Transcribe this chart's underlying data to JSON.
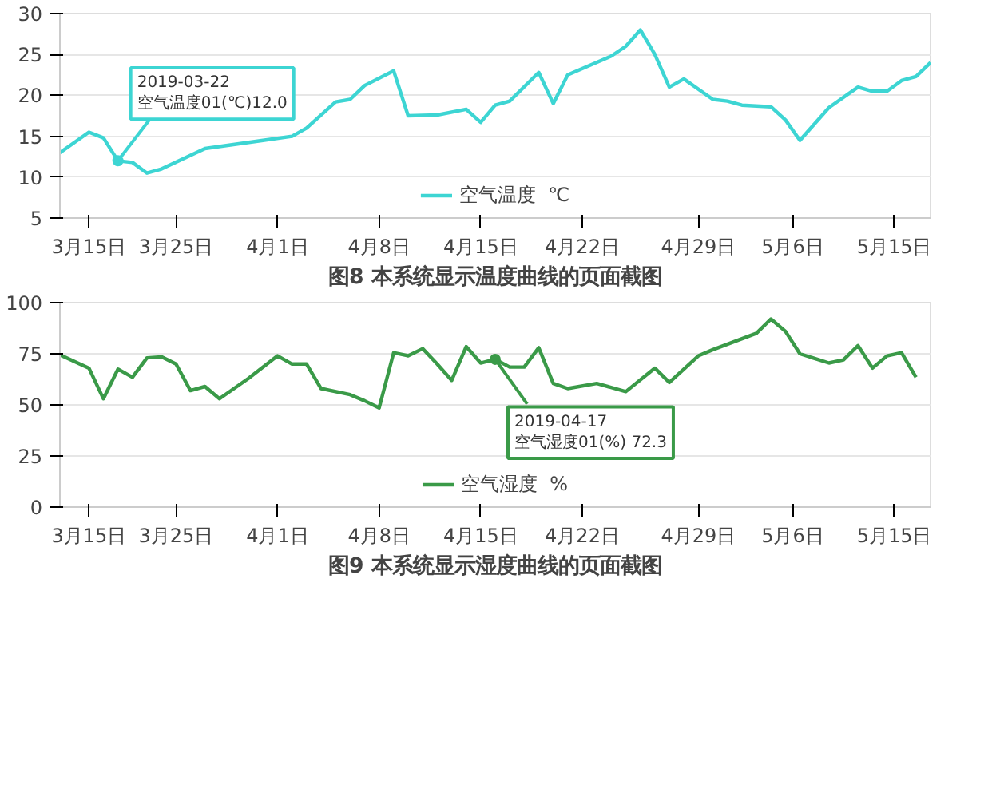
{
  "chart_data": [
    {
      "type": "line",
      "title": "图8 本系统显示温度曲线的页面截图",
      "legend": "bottom",
      "grid": "y",
      "marker": "none",
      "line_style": "solid",
      "xlim": [
        "2019-03-18",
        "2019-05-17"
      ],
      "ylim": [
        5,
        30
      ],
      "yticks": [
        5,
        10,
        15,
        20,
        25,
        30
      ],
      "xticks": [
        {
          "value": "2019-03-20",
          "label": "3月15日"
        },
        {
          "value": "2019-03-26",
          "label": "3月25日"
        },
        {
          "value": "2019-04-02",
          "label": "4月1日"
        },
        {
          "value": "2019-04-09",
          "label": "4月8日"
        },
        {
          "value": "2019-04-16",
          "label": "4月15日"
        },
        {
          "value": "2019-04-23",
          "label": "4月22日"
        },
        {
          "value": "2019-05-01",
          "label": "4月29日"
        },
        {
          "value": "2019-05-07T12:00",
          "label": "5月6日"
        },
        {
          "value": "2019-05-14T12:00",
          "label": "5月15日"
        }
      ],
      "annotations": [
        {
          "text": "2019-03-22\n空气温度01(℃)12.0",
          "x": "2019-03-22",
          "y": 12.0
        }
      ],
      "series": [
        {
          "name": "空气温度  ℃",
          "color": "#3dd5d3",
          "x": [
            "2019-03-18",
            "2019-03-20",
            "2019-03-21",
            "2019-03-22",
            "2019-03-23",
            "2019-03-24",
            "2019-03-25",
            "2019-03-28",
            "2019-04-01",
            "2019-04-03",
            "2019-04-04",
            "2019-04-06",
            "2019-04-07",
            "2019-04-08",
            "2019-04-10",
            "2019-04-11",
            "2019-04-13",
            "2019-04-15",
            "2019-04-16",
            "2019-04-17",
            "2019-04-18",
            "2019-04-20",
            "2019-04-21",
            "2019-04-22",
            "2019-04-25",
            "2019-04-26",
            "2019-04-27",
            "2019-04-28",
            "2019-04-29",
            "2019-04-30",
            "2019-05-02",
            "2019-05-03",
            "2019-05-04",
            "2019-05-06",
            "2019-05-07",
            "2019-05-08",
            "2019-05-09",
            "2019-05-10",
            "2019-05-12",
            "2019-05-13",
            "2019-05-14",
            "2019-05-15",
            "2019-05-16",
            "2019-05-17"
          ],
          "values": [
            13.0,
            15.5,
            14.8,
            12.0,
            11.8,
            10.5,
            11.0,
            13.5,
            14.5,
            15.0,
            16.0,
            19.2,
            19.5,
            21.2,
            23.0,
            17.5,
            17.6,
            18.3,
            16.7,
            18.8,
            19.3,
            22.8,
            19.0,
            22.5,
            24.8,
            26.0,
            28.0,
            25.0,
            21.0,
            22.0,
            19.5,
            19.3,
            18.8,
            18.6,
            17.0,
            14.5,
            16.5,
            18.5,
            21.0,
            20.5,
            20.5,
            21.8,
            22.3,
            24.0
          ]
        }
      ]
    },
    {
      "type": "line",
      "title": "图9 本系统显示湿度曲线的页面截图",
      "legend": "bottom",
      "grid": "y",
      "marker": "none",
      "line_style": "solid",
      "xlim": [
        "2019-03-18",
        "2019-05-17"
      ],
      "ylim": [
        0,
        100
      ],
      "yticks": [
        0,
        25,
        50,
        75,
        100
      ],
      "xticks": [
        {
          "value": "2019-03-20",
          "label": "3月15日"
        },
        {
          "value": "2019-03-26",
          "label": "3月25日"
        },
        {
          "value": "2019-04-02",
          "label": "4月1日"
        },
        {
          "value": "2019-04-09",
          "label": "4月8日"
        },
        {
          "value": "2019-04-16",
          "label": "4月15日"
        },
        {
          "value": "2019-04-23",
          "label": "4月22日"
        },
        {
          "value": "2019-05-01",
          "label": "4月29日"
        },
        {
          "value": "2019-05-07T12:00",
          "label": "5月6日"
        },
        {
          "value": "2019-05-14T12:00",
          "label": "5月15日"
        }
      ],
      "annotations": [
        {
          "text": "2019-04-17\n空气湿度01(%) 72.3",
          "x": "2019-04-17",
          "y": 72.3
        }
      ],
      "series": [
        {
          "name": "空气湿度  %",
          "color": "#3a9a48",
          "x": [
            "2019-03-18",
            "2019-03-20",
            "2019-03-21",
            "2019-03-22",
            "2019-03-23",
            "2019-03-24",
            "2019-03-25",
            "2019-03-26",
            "2019-03-27",
            "2019-03-28",
            "2019-03-29",
            "2019-03-31",
            "2019-04-02",
            "2019-04-03",
            "2019-04-04",
            "2019-04-05",
            "2019-04-07",
            "2019-04-08",
            "2019-04-09",
            "2019-04-10",
            "2019-04-11",
            "2019-04-12",
            "2019-04-13",
            "2019-04-14",
            "2019-04-15",
            "2019-04-16",
            "2019-04-17",
            "2019-04-18",
            "2019-04-19",
            "2019-04-20",
            "2019-04-21",
            "2019-04-22",
            "2019-04-24",
            "2019-04-26",
            "2019-04-28",
            "2019-04-29",
            "2019-05-01",
            "2019-05-02",
            "2019-05-05",
            "2019-05-06",
            "2019-05-07",
            "2019-05-08",
            "2019-05-10",
            "2019-05-11",
            "2019-05-12",
            "2019-05-13",
            "2019-05-14",
            "2019-05-15",
            "2019-05-16"
          ],
          "values": [
            74.5,
            68,
            53,
            67.5,
            63.5,
            73,
            73.5,
            70,
            57,
            59,
            53,
            63,
            74,
            70,
            70,
            58,
            55,
            52,
            48.5,
            75.5,
            74,
            77.5,
            70,
            62,
            78.5,
            70.5,
            72.3,
            68.5,
            68.5,
            78,
            60.5,
            58,
            60.5,
            56.5,
            68,
            61,
            74,
            77,
            85,
            92,
            86,
            75,
            70.5,
            72,
            79,
            68,
            74,
            75.5,
            63.5
          ]
        }
      ]
    }
  ]
}
